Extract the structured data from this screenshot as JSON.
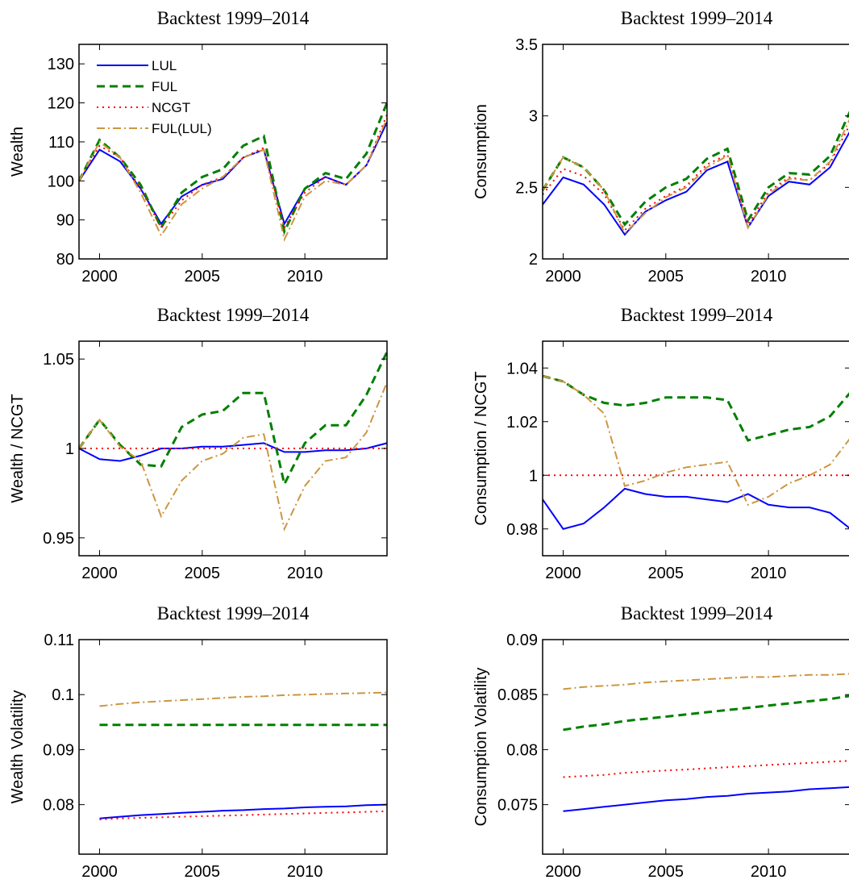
{
  "chart_data": [
    {
      "type": "line",
      "title": "Backtest 1999–2014",
      "y_label": "Wealth",
      "legend": "upper left",
      "x": [
        1999,
        2000,
        2001,
        2002,
        2003,
        2004,
        2005,
        2006,
        2007,
        2008,
        2009,
        2010,
        2011,
        2012,
        2013,
        2014
      ],
      "xlim": [
        1999,
        2014
      ],
      "xticks": [
        2000,
        2005,
        2010
      ],
      "ylim": [
        80,
        135
      ],
      "yticks": [
        80,
        90,
        100,
        110,
        120,
        130
      ],
      "series": [
        {
          "name": "LUL",
          "color": "#0000ff",
          "dash": "solid",
          "values": [
            100,
            108,
            105,
            98,
            89,
            96,
            99,
            100.5,
            106,
            108,
            89,
            98,
            101,
            99,
            104,
            115
          ]
        },
        {
          "name": "FUL",
          "color": "#007f00",
          "dash": "dashed",
          "values": [
            100,
            110.5,
            106,
            99,
            88,
            97,
            101,
            103,
            109,
            111.5,
            87,
            98,
            102,
            100.5,
            107,
            120
          ]
        },
        {
          "name": "NCGT",
          "color": "#ff0000",
          "dash": "dotted",
          "values": [
            100,
            109,
            106,
            98,
            88,
            95,
            99,
            101,
            106,
            108.5,
            88,
            97,
            101,
            99,
            104,
            117
          ]
        },
        {
          "name": "FUL(LUL)",
          "color": "#cc9640",
          "dash": "dashdot",
          "values": [
            100,
            110,
            106,
            97,
            86,
            94,
            98,
            101,
            106,
            108,
            85,
            96,
            100,
            99,
            104,
            116
          ]
        }
      ]
    },
    {
      "type": "line",
      "title": "Backtest 1999–2014",
      "y_label": "Consumption",
      "x": [
        1999,
        2000,
        2001,
        2002,
        2003,
        2004,
        2005,
        2006,
        2007,
        2008,
        2009,
        2010,
        2011,
        2012,
        2013,
        2014
      ],
      "xlim": [
        1999,
        2014
      ],
      "xticks": [
        2000,
        2005,
        2010
      ],
      "ylim": [
        2,
        3.5
      ],
      "yticks": [
        2,
        2.5,
        3,
        3.5
      ],
      "series": [
        {
          "name": "LUL",
          "color": "#0000ff",
          "dash": "solid",
          "values": [
            2.38,
            2.57,
            2.52,
            2.38,
            2.17,
            2.33,
            2.41,
            2.47,
            2.62,
            2.68,
            2.22,
            2.44,
            2.54,
            2.52,
            2.64,
            2.9
          ]
        },
        {
          "name": "FUL",
          "color": "#007f00",
          "dash": "dashed",
          "values": [
            2.48,
            2.71,
            2.64,
            2.48,
            2.24,
            2.4,
            2.5,
            2.56,
            2.7,
            2.77,
            2.27,
            2.5,
            2.6,
            2.59,
            2.72,
            3.04
          ]
        },
        {
          "name": "NCGT",
          "color": "#ff0000",
          "dash": "dotted",
          "values": [
            2.45,
            2.63,
            2.58,
            2.45,
            2.2,
            2.35,
            2.44,
            2.51,
            2.66,
            2.73,
            2.24,
            2.47,
            2.57,
            2.55,
            2.67,
            2.95
          ]
        },
        {
          "name": "FUL(LUL)",
          "color": "#cc9640",
          "dash": "dashdot",
          "values": [
            2.48,
            2.71,
            2.64,
            2.48,
            2.18,
            2.32,
            2.43,
            2.5,
            2.64,
            2.72,
            2.22,
            2.45,
            2.56,
            2.55,
            2.68,
            2.99
          ]
        }
      ]
    },
    {
      "type": "line",
      "title": "Backtest 1999–2014",
      "y_label": "Wealth / NCGT",
      "x": [
        1999,
        2000,
        2001,
        2002,
        2003,
        2004,
        2005,
        2006,
        2007,
        2008,
        2009,
        2010,
        2011,
        2012,
        2013,
        2014
      ],
      "xlim": [
        1999,
        2014
      ],
      "xticks": [
        2000,
        2005,
        2010
      ],
      "ylim": [
        0.94,
        1.06
      ],
      "yticks": [
        0.95,
        1,
        1.05
      ],
      "series": [
        {
          "name": "LUL",
          "color": "#0000ff",
          "dash": "solid",
          "values": [
            1,
            0.994,
            0.993,
            0.996,
            1,
            1,
            1.001,
            1.001,
            1.002,
            1.003,
            0.998,
            0.998,
            0.999,
            0.999,
            1,
            1.003
          ]
        },
        {
          "name": "FUL",
          "color": "#007f00",
          "dash": "dashed",
          "values": [
            1,
            1.016,
            1.002,
            0.991,
            0.99,
            1.012,
            1.019,
            1.021,
            1.031,
            1.031,
            0.98,
            1.003,
            1.013,
            1.013,
            1.03,
            1.054
          ]
        },
        {
          "name": "NCGT",
          "color": "#ff0000",
          "dash": "dotted",
          "values": [
            1,
            1,
            1,
            1,
            1,
            1,
            1,
            1,
            1,
            1,
            1,
            1,
            1,
            1,
            1,
            1
          ]
        },
        {
          "name": "FUL(LUL)",
          "color": "#cc9640",
          "dash": "dashdot",
          "values": [
            1,
            1.016,
            1.001,
            0.993,
            0.962,
            0.982,
            0.993,
            0.997,
            1.006,
            1.008,
            0.955,
            0.979,
            0.993,
            0.995,
            1.009,
            1.037
          ]
        }
      ]
    },
    {
      "type": "line",
      "title": "Backtest 1999–2014",
      "y_label": "Consumption / NCGT",
      "x": [
        1999,
        2000,
        2001,
        2002,
        2003,
        2004,
        2005,
        2006,
        2007,
        2008,
        2009,
        2010,
        2011,
        2012,
        2013,
        2014
      ],
      "xlim": [
        1999,
        2014
      ],
      "xticks": [
        2000,
        2005,
        2010
      ],
      "ylim": [
        0.97,
        1.05
      ],
      "yticks": [
        0.98,
        1,
        1.02,
        1.04
      ],
      "series": [
        {
          "name": "LUL",
          "color": "#0000ff",
          "dash": "solid",
          "values": [
            0.991,
            0.98,
            0.982,
            0.988,
            0.995,
            0.993,
            0.992,
            0.992,
            0.991,
            0.99,
            0.993,
            0.989,
            0.988,
            0.988,
            0.986,
            0.98
          ]
        },
        {
          "name": "FUL",
          "color": "#007f00",
          "dash": "dashed",
          "values": [
            1.037,
            1.035,
            1.03,
            1.027,
            1.026,
            1.027,
            1.029,
            1.029,
            1.029,
            1.028,
            1.013,
            1.015,
            1.017,
            1.018,
            1.022,
            1.031
          ]
        },
        {
          "name": "NCGT",
          "color": "#ff0000",
          "dash": "dotted",
          "values": [
            1,
            1,
            1,
            1,
            1,
            1,
            1,
            1,
            1,
            1,
            1,
            1,
            1,
            1,
            1,
            1
          ]
        },
        {
          "name": "FUL(LUL)",
          "color": "#cc9640",
          "dash": "dashdot",
          "values": [
            1.037,
            1.035,
            1.03,
            1.023,
            0.996,
            0.998,
            1.001,
            1.003,
            1.004,
            1.005,
            0.989,
            0.992,
            0.997,
            1,
            1.004,
            1.014
          ]
        }
      ]
    },
    {
      "type": "line",
      "title": "Backtest 1999–2014",
      "y_label": "Wealth Volatility",
      "x": [
        2000,
        2001,
        2002,
        2003,
        2004,
        2005,
        2006,
        2007,
        2008,
        2009,
        2010,
        2011,
        2012,
        2013,
        2014
      ],
      "xlim": [
        1999,
        2014
      ],
      "xticks": [
        2000,
        2005,
        2010
      ],
      "ylim": [
        0.071,
        0.11
      ],
      "yticks": [
        0.08,
        0.09,
        0.1,
        0.11
      ],
      "series": [
        {
          "name": "LUL",
          "color": "#0000ff",
          "dash": "solid",
          "values": [
            0.0775,
            0.0778,
            0.0781,
            0.0783,
            0.0785,
            0.0787,
            0.0789,
            0.079,
            0.0792,
            0.0793,
            0.0795,
            0.0796,
            0.0797,
            0.0799,
            0.08
          ]
        },
        {
          "name": "FUL",
          "color": "#007f00",
          "dash": "dashed",
          "values": [
            0.0945,
            0.0945,
            0.0945,
            0.0945,
            0.0945,
            0.0945,
            0.0945,
            0.0945,
            0.0945,
            0.0945,
            0.0945,
            0.0945,
            0.0945,
            0.0945,
            0.0945
          ]
        },
        {
          "name": "NCGT",
          "color": "#ff0000",
          "dash": "dotted",
          "values": [
            0.0773,
            0.0775,
            0.0776,
            0.0777,
            0.0778,
            0.0779,
            0.078,
            0.0781,
            0.0782,
            0.0783,
            0.0784,
            0.0785,
            0.0786,
            0.0787,
            0.0788
          ]
        },
        {
          "name": "FUL(LUL)",
          "color": "#cc9640",
          "dash": "dashdot",
          "values": [
            0.0979,
            0.0983,
            0.0986,
            0.0988,
            0.099,
            0.0992,
            0.0994,
            0.0996,
            0.0997,
            0.0999,
            0.1,
            0.1001,
            0.1002,
            0.1003,
            0.1004
          ]
        }
      ]
    },
    {
      "type": "line",
      "title": "Backtest 1999–2014",
      "y_label": "Consumption Volatility",
      "x": [
        2000,
        2001,
        2002,
        2003,
        2004,
        2005,
        2006,
        2007,
        2008,
        2009,
        2010,
        2011,
        2012,
        2013,
        2014
      ],
      "xlim": [
        1999,
        2014
      ],
      "xticks": [
        2000,
        2005,
        2010
      ],
      "ylim": [
        0.0705,
        0.09
      ],
      "yticks": [
        0.075,
        0.08,
        0.085,
        0.09
      ],
      "series": [
        {
          "name": "LUL",
          "color": "#0000ff",
          "dash": "solid",
          "values": [
            0.0744,
            0.0746,
            0.0748,
            0.075,
            0.0752,
            0.0754,
            0.0755,
            0.0757,
            0.0758,
            0.076,
            0.0761,
            0.0762,
            0.0764,
            0.0765,
            0.0766
          ]
        },
        {
          "name": "FUL",
          "color": "#007f00",
          "dash": "dashed",
          "values": [
            0.0818,
            0.0821,
            0.0823,
            0.0826,
            0.0828,
            0.083,
            0.0832,
            0.0834,
            0.0836,
            0.0838,
            0.084,
            0.0842,
            0.0844,
            0.0846,
            0.0849
          ]
        },
        {
          "name": "NCGT",
          "color": "#ff0000",
          "dash": "dotted",
          "values": [
            0.0775,
            0.0776,
            0.0777,
            0.0779,
            0.078,
            0.0781,
            0.0782,
            0.0783,
            0.0784,
            0.0785,
            0.0786,
            0.0787,
            0.0788,
            0.0789,
            0.079
          ]
        },
        {
          "name": "FUL(LUL)",
          "color": "#cc9640",
          "dash": "dashdot",
          "values": [
            0.0855,
            0.0857,
            0.0858,
            0.0859,
            0.0861,
            0.0862,
            0.0863,
            0.0864,
            0.0865,
            0.0866,
            0.0866,
            0.0867,
            0.0868,
            0.0868,
            0.0869
          ]
        }
      ]
    }
  ]
}
